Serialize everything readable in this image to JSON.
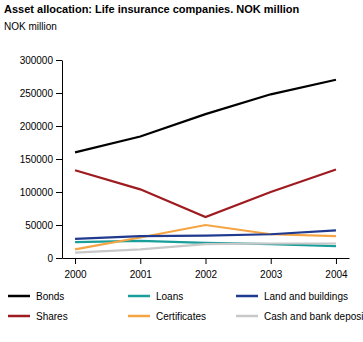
{
  "chart_data": {
    "type": "line",
    "title": "Asset allocation: Life insurance companies. NOK million",
    "y_label": "NOK million",
    "categories": [
      "2000",
      "2001",
      "2002",
      "2003",
      "2004"
    ],
    "series": [
      {
        "name": "Bonds",
        "color": "#000000",
        "values": [
          160000,
          184000,
          218000,
          248000,
          270000
        ]
      },
      {
        "name": "Shares",
        "color": "#9e1b20",
        "values": [
          133000,
          104000,
          62000,
          100000,
          134000
        ]
      },
      {
        "name": "Loans",
        "color": "#1a9e9a",
        "values": [
          24000,
          26000,
          23000,
          21000,
          18000
        ]
      },
      {
        "name": "Certificates",
        "color": "#f5a443",
        "values": [
          13000,
          31000,
          50000,
          36000,
          33000
        ]
      },
      {
        "name": "Land and buildings",
        "color": "#1f3a8f",
        "values": [
          29000,
          33000,
          34000,
          36000,
          42000
        ]
      },
      {
        "name": "Cash and bank deposits",
        "color": "#c8c8c8",
        "values": [
          8000,
          13000,
          21000,
          22000,
          22000
        ]
      }
    ],
    "ylim": [
      0,
      300000
    ],
    "yticks": [
      0,
      50000,
      100000,
      150000,
      200000,
      250000,
      300000
    ],
    "grid": false,
    "legend": "bottom"
  }
}
